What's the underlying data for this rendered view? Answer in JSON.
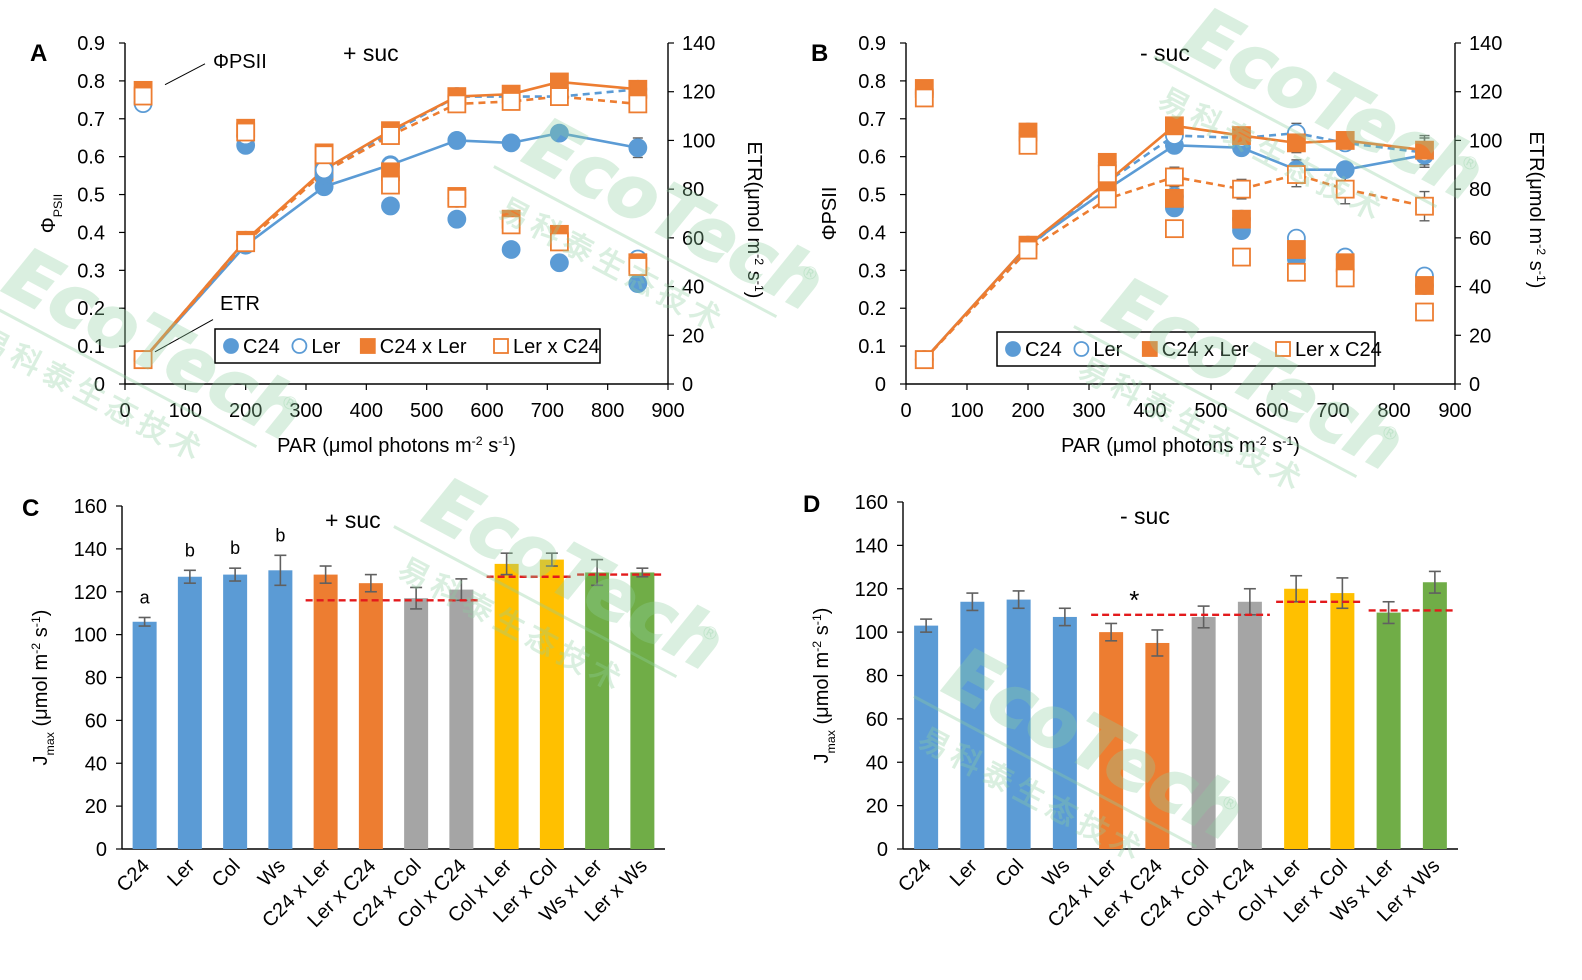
{
  "colors": {
    "blue": "#5b9bd5",
    "dark_blue": "#4472c4",
    "orange": "#ed7d31",
    "gray": "#a5a5a5",
    "yellow": "#ffc000",
    "green": "#70ad47",
    "red_dash": "#e31a1c",
    "watermark": "#8fd0a0"
  },
  "watermark": {
    "brand": "EcoTech",
    "registered": "®",
    "chinese": "易科泰生态技术"
  },
  "chart_data": [
    {
      "panel": "A",
      "type": "line",
      "title": "+ suc",
      "xlabel": "PAR (μmol photons m-2 s-1)",
      "xlabel_parts": [
        "PAR (μmol photons m",
        "-2",
        " s",
        "-1",
        ")"
      ],
      "ylabel_left": "ΦPSII",
      "ylabel_left_parts": [
        "Φ",
        "PSII"
      ],
      "ylabel_right": "ETR(μmol m-2 s-1)",
      "ylabel_right_parts": [
        "ETR(μmol m",
        "-2",
        " s",
        "-1",
        ")"
      ],
      "xlim": [
        0,
        900
      ],
      "x_ticks": [
        0,
        100,
        200,
        300,
        400,
        500,
        600,
        700,
        800,
        900
      ],
      "ylim_left": [
        0,
        0.9
      ],
      "y_left_ticks": [
        "0",
        "0.1",
        "0.2",
        "0.3",
        "0.4",
        "0.5",
        "0.6",
        "0.7",
        "0.8",
        "0.9"
      ],
      "ylim_right": [
        0,
        140
      ],
      "y_right_ticks": [
        0,
        20,
        40,
        60,
        80,
        100,
        120,
        140
      ],
      "annotations": {
        "phi": "ΦPSII",
        "etr": "ETR"
      },
      "legend": [
        "C24",
        "Ler",
        "C24 x Ler",
        "Ler x C24"
      ],
      "x": [
        30,
        200,
        330,
        440,
        550,
        640,
        720,
        850
      ],
      "phi_series": [
        {
          "name": "C24",
          "values": [
            0.745,
            0.63,
            0.55,
            0.47,
            0.435,
            0.355,
            0.32,
            0.265
          ]
        },
        {
          "name": "Ler",
          "values": [
            0.74,
            0.655,
            0.565,
            0.575,
            0.49,
            0.43,
            0.38,
            0.33
          ]
        },
        {
          "name": "C24 x Ler",
          "values": [
            0.775,
            0.675,
            0.61,
            0.56,
            0.495,
            0.435,
            0.395,
            0.32
          ]
        },
        {
          "name": "Ler x C24",
          "values": [
            0.76,
            0.665,
            0.605,
            0.525,
            0.49,
            0.42,
            0.375,
            0.31
          ]
        }
      ],
      "etr_series": [
        {
          "name": "C24",
          "values": [
            10,
            57,
            81,
            90,
            100,
            99,
            103,
            97
          ],
          "err": [
            0,
            2,
            2,
            3,
            3,
            2,
            2,
            4
          ]
        },
        {
          "name": "Ler",
          "values": [
            10,
            59,
            87,
            103,
            118,
            118,
            118,
            121
          ],
          "err": [
            0,
            2,
            2,
            2,
            2,
            2,
            2,
            3
          ]
        },
        {
          "name": "C24 x Ler",
          "values": [
            10,
            59,
            88,
            104,
            118,
            119,
            124,
            121
          ],
          "err": [
            0,
            2,
            2,
            2,
            2,
            2,
            2,
            3
          ]
        },
        {
          "name": "Ler x C24",
          "values": [
            10,
            58,
            87,
            102,
            115,
            116,
            118,
            115
          ],
          "err": [
            0,
            2,
            2,
            2,
            2,
            2,
            2,
            3
          ]
        }
      ]
    },
    {
      "panel": "B",
      "type": "line",
      "title": "- suc",
      "xlabel": "PAR (μmol photons m-2 s-1)",
      "xlabel_parts": [
        "PAR (μmol photons m",
        "-2",
        " s",
        "-1",
        ")"
      ],
      "ylabel_left": "ΦPSII",
      "ylabel_right": "ETR(μmol m-2 s-1)",
      "ylabel_right_parts": [
        "ETR(μmol m",
        "-2",
        " s",
        "-1",
        ")"
      ],
      "xlim": [
        0,
        900
      ],
      "x_ticks": [
        0,
        100,
        200,
        300,
        400,
        500,
        600,
        700,
        800,
        900
      ],
      "ylim_left": [
        0,
        0.9
      ],
      "y_left_ticks": [
        "0",
        "0.1",
        "0.2",
        "0.3",
        "0.4",
        "0.5",
        "0.6",
        "0.7",
        "0.8",
        "0.9"
      ],
      "ylim_right": [
        0,
        140
      ],
      "y_right_ticks": [
        0,
        20,
        40,
        60,
        80,
        100,
        120,
        140
      ],
      "legend": [
        "C24",
        "Ler",
        "C24 x Ler",
        "Ler x C24"
      ],
      "x": [
        30,
        200,
        330,
        440,
        550,
        640,
        720,
        850
      ],
      "phi_series": [
        {
          "name": "C24",
          "values": [
            0.77,
            0.66,
            0.575,
            0.465,
            0.405,
            0.33,
            0.33,
            0.26
          ]
        },
        {
          "name": "Ler",
          "values": [
            0.765,
            0.665,
            0.585,
            0.495,
            0.435,
            0.385,
            0.335,
            0.285
          ]
        },
        {
          "name": "C24 x Ler",
          "values": [
            0.78,
            0.665,
            0.585,
            0.49,
            0.435,
            0.355,
            0.32,
            0.26
          ]
        },
        {
          "name": "Ler x C24",
          "values": [
            0.755,
            0.63,
            0.555,
            0.41,
            0.335,
            0.295,
            0.28,
            0.19
          ]
        }
      ],
      "etr_series": [
        {
          "name": "C24",
          "values": [
            10,
            57,
            80,
            98,
            97,
            88,
            88,
            94
          ],
          "err": [
            0,
            2,
            3,
            3,
            3,
            4,
            3,
            5
          ]
        },
        {
          "name": "Ler",
          "values": [
            10,
            56,
            83,
            102,
            101,
            103,
            99,
            95
          ],
          "err": [
            0,
            2,
            3,
            3,
            3,
            4,
            3,
            6
          ]
        },
        {
          "name": "C24 x Ler",
          "values": [
            10,
            57,
            83,
            106,
            102,
            99,
            100,
            96
          ],
          "err": [
            0,
            2,
            3,
            3,
            3,
            4,
            3,
            6
          ]
        },
        {
          "name": "Ler x C24",
          "values": [
            10,
            55,
            76,
            85,
            80,
            86,
            80,
            73
          ],
          "err": [
            0,
            2,
            3,
            4,
            4,
            5,
            6,
            6
          ]
        }
      ]
    },
    {
      "panel": "C",
      "type": "bar",
      "title": "+ suc",
      "ylabel": "Jmax (μmol m-2 s-1)",
      "ylabel_parts": [
        "J",
        "max",
        " (μmol m",
        "-2",
        " s",
        "-1",
        ")"
      ],
      "ylim": [
        0,
        160
      ],
      "y_ticks": [
        0,
        20,
        40,
        60,
        80,
        100,
        120,
        140,
        160
      ],
      "categories": [
        "C24",
        "Ler",
        "Col",
        "Ws",
        "C24 x Ler",
        "Ler x C24",
        "C24 x Col",
        "Col x C24",
        "Col x Ler",
        "Ler x Col",
        "Ws x Ler",
        "Ler x Ws"
      ],
      "values": [
        106,
        127,
        128,
        130,
        128,
        124,
        117,
        121,
        133,
        135,
        129,
        129
      ],
      "errors": [
        2,
        3,
        3,
        7,
        4,
        4,
        5,
        5,
        5,
        3,
        6,
        2
      ],
      "bar_colors": [
        "blue",
        "blue",
        "blue",
        "blue",
        "orange",
        "orange",
        "gray",
        "gray",
        "yellow",
        "yellow",
        "green",
        "green"
      ],
      "letters": [
        "a",
        "b",
        "b",
        "b"
      ],
      "midparent_lines": [
        {
          "from": 4,
          "to": 7,
          "value": 116
        },
        {
          "from": 8,
          "to": 9,
          "value": 127
        },
        {
          "from": 10,
          "to": 11,
          "value": 128
        }
      ]
    },
    {
      "panel": "D",
      "type": "bar",
      "title": "- suc",
      "ylabel": "Jmax (μmol m-2 s-1)",
      "ylabel_parts": [
        "J",
        "max",
        " (μmol m",
        "-2",
        " s",
        "-1",
        ")"
      ],
      "ylim": [
        0,
        160
      ],
      "y_ticks": [
        0,
        20,
        40,
        60,
        80,
        100,
        120,
        140,
        160
      ],
      "categories": [
        "C24",
        "Ler",
        "Col",
        "Ws",
        "C24 x Ler",
        "Ler x C24",
        "C24 x Col",
        "Col x C24",
        "Col x Ler",
        "Ler x Col",
        "Ws x Ler",
        "Ler x Ws"
      ],
      "values": [
        103,
        114,
        115,
        107,
        100,
        95,
        107,
        114,
        120,
        118,
        109,
        123
      ],
      "errors": [
        3,
        4,
        4,
        4,
        4,
        6,
        5,
        6,
        6,
        7,
        5,
        5
      ],
      "bar_colors": [
        "blue",
        "blue",
        "blue",
        "blue",
        "orange",
        "orange",
        "gray",
        "gray",
        "yellow",
        "yellow",
        "green",
        "green"
      ],
      "significance": "*",
      "midparent_lines": [
        {
          "from": 4,
          "to": 7,
          "value": 108
        },
        {
          "from": 8,
          "to": 9,
          "value": 114
        },
        {
          "from": 10,
          "to": 11,
          "value": 110
        }
      ]
    }
  ]
}
